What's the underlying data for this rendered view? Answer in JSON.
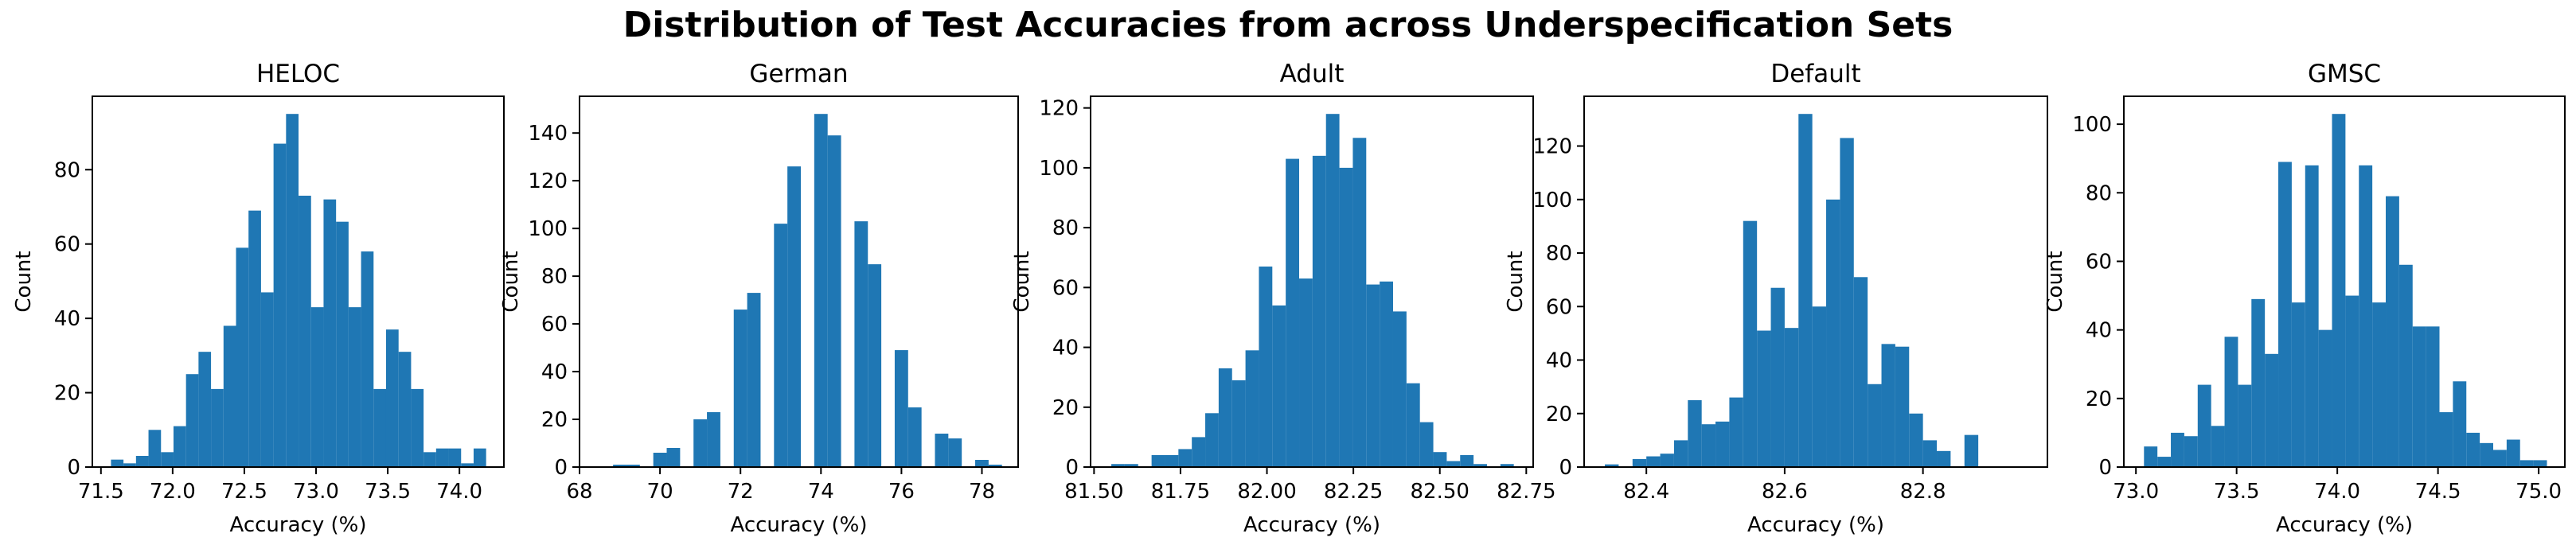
{
  "suptitle": "Distribution of Test Accuracies from across Underspecification Sets",
  "bar_color": "#1f77b4",
  "chart_data": [
    {
      "type": "bar",
      "title": "HELOC",
      "xlabel": "Accuracy (%)",
      "ylabel": "Count",
      "xlim": [
        71.44,
        74.31
      ],
      "ylim": [
        0,
        99.75
      ],
      "xticks": [
        71.5,
        72.0,
        72.5,
        73.0,
        73.5,
        74.0
      ],
      "xtick_labels": [
        "71.5",
        "72.0",
        "72.5",
        "73.0",
        "73.5",
        "74.0"
      ],
      "yticks": [
        0,
        20,
        40,
        60,
        80
      ],
      "ytick_labels": [
        "0",
        "20",
        "40",
        "60",
        "80"
      ],
      "bin_start": 71.57,
      "bin_width": 0.0872,
      "values": [
        2,
        1,
        3,
        10,
        4,
        11,
        25,
        31,
        21,
        38,
        59,
        69,
        47,
        87,
        95,
        73,
        43,
        72,
        66,
        43,
        58,
        21,
        37,
        31,
        21,
        4,
        5,
        5,
        1,
        5
      ]
    },
    {
      "type": "bar",
      "title": "German",
      "xlabel": "Accuracy (%)",
      "ylabel": "Count",
      "xlim": [
        68.0,
        78.9
      ],
      "ylim": [
        0,
        155.4
      ],
      "xticks": [
        68,
        70,
        72,
        74,
        76,
        78
      ],
      "xtick_labels": [
        "68",
        "70",
        "72",
        "74",
        "76",
        "78"
      ],
      "yticks": [
        0,
        20,
        40,
        60,
        80,
        100,
        120,
        140
      ],
      "ytick_labels": [
        "0",
        "20",
        "40",
        "60",
        "80",
        "100",
        "120",
        "140"
      ],
      "bin_start": 68.5,
      "bin_width": 0.3333,
      "values": [
        0,
        1,
        1,
        0,
        6,
        8,
        0,
        20,
        23,
        0,
        66,
        73,
        0,
        102,
        126,
        0,
        148,
        139,
        0,
        103,
        85,
        0,
        49,
        25,
        0,
        14,
        12,
        0,
        3,
        1
      ]
    },
    {
      "type": "bar",
      "title": "Adult",
      "xlabel": "Accuracy (%)",
      "ylabel": "Count",
      "xlim": [
        81.49,
        82.77
      ],
      "ylim": [
        0,
        123.9
      ],
      "xticks": [
        81.5,
        81.75,
        82.0,
        82.25,
        82.5,
        82.75
      ],
      "xtick_labels": [
        "81.50",
        "81.75",
        "82.00",
        "82.25",
        "82.50",
        "82.75"
      ],
      "yticks": [
        0,
        20,
        40,
        60,
        80,
        100,
        120
      ],
      "ytick_labels": [
        "0",
        "20",
        "40",
        "60",
        "80",
        "100",
        "120"
      ],
      "bin_start": 81.55,
      "bin_width": 0.0388,
      "values": [
        1,
        1,
        0,
        4,
        4,
        6,
        10,
        18,
        33,
        29,
        39,
        67,
        54,
        103,
        63,
        104,
        118,
        100,
        110,
        61,
        62,
        52,
        28,
        15,
        5,
        2,
        4,
        1,
        0,
        1
      ]
    },
    {
      "type": "bar",
      "title": "Default",
      "xlabel": "Accuracy (%)",
      "ylabel": "Count",
      "xlim": [
        82.31,
        82.98
      ],
      "ylim": [
        0,
        138.6
      ],
      "xticks": [
        82.4,
        82.6,
        82.8
      ],
      "xtick_labels": [
        "82.4",
        "82.6",
        "82.8"
      ],
      "yticks": [
        0,
        20,
        40,
        60,
        80,
        100,
        120
      ],
      "ytick_labels": [
        "0",
        "20",
        "40",
        "60",
        "80",
        "100",
        "120"
      ],
      "bin_start": 82.34,
      "bin_width": 0.02,
      "values": [
        1,
        0,
        3,
        4,
        5,
        10,
        25,
        16,
        17,
        26,
        92,
        51,
        67,
        52,
        132,
        60,
        100,
        123,
        71,
        31,
        46,
        45,
        20,
        10,
        6,
        0,
        12,
        0,
        0,
        0
      ]
    },
    {
      "type": "bar",
      "title": "GMSC",
      "xlabel": "Accuracy (%)",
      "ylabel": "Count",
      "xlim": [
        72.94,
        75.13
      ],
      "ylim": [
        0,
        108.15
      ],
      "xticks": [
        73.0,
        73.5,
        74.0,
        74.5,
        75.0
      ],
      "xtick_labels": [
        "73.0",
        "73.5",
        "74.0",
        "74.5",
        "75.0"
      ],
      "yticks": [
        0,
        20,
        40,
        60,
        80,
        100
      ],
      "ytick_labels": [
        "0",
        "20",
        "40",
        "60",
        "80",
        "100"
      ],
      "bin_start": 73.04,
      "bin_width": 0.0667,
      "values": [
        6,
        3,
        10,
        9,
        24,
        12,
        38,
        24,
        49,
        33,
        89,
        48,
        88,
        40,
        103,
        50,
        88,
        48,
        79,
        59,
        41,
        41,
        16,
        25,
        10,
        7,
        5,
        8,
        2,
        2
      ]
    }
  ]
}
